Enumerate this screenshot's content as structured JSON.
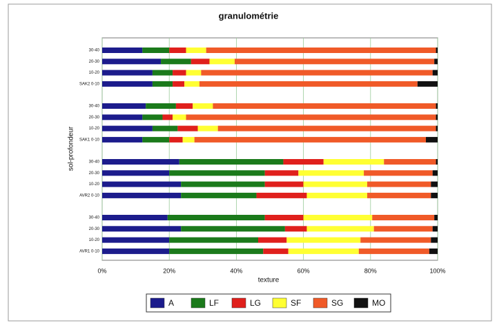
{
  "chart_data": {
    "type": "stacked-bar-horizontal",
    "title": "granulométrie",
    "x_label": "texture",
    "y_label": "sol-profondeur",
    "categories": [
      "30-40",
      "20-30",
      "10-20",
      "SAK2 0-10",
      "30-40",
      "20-30",
      "10-20",
      "SAK1 0-10",
      "30-40",
      "20-30",
      "10-20",
      "AVR2 0-10",
      "30-40",
      "20-30",
      "10-20",
      "AVR1 0-10"
    ],
    "series": [
      {
        "name": "A",
        "color": "#1c1c8c",
        "values": [
          12,
          17.5,
          15,
          15,
          13,
          12,
          15,
          12,
          23,
          20,
          23.5,
          23.5,
          19.5,
          23.5,
          20,
          20
        ]
      },
      {
        "name": "LF",
        "color": "#1b7a1b",
        "values": [
          8,
          9,
          6,
          6,
          9,
          6,
          7.5,
          8,
          31,
          28.5,
          25,
          22.5,
          29,
          31,
          26.5,
          28
        ]
      },
      {
        "name": "LG",
        "color": "#e0201c",
        "values": [
          5,
          5.5,
          4,
          3.5,
          5,
          3,
          6,
          4,
          12,
          10,
          11.5,
          15,
          11.5,
          6.5,
          8.5,
          7.5
        ]
      },
      {
        "name": "SF",
        "color": "#ffff33",
        "values": [
          6,
          7.5,
          4.5,
          4.5,
          6,
          4,
          6,
          3.5,
          18,
          19.5,
          19,
          18,
          20.5,
          20,
          22,
          21
        ]
      },
      {
        "name": "SG",
        "color": "#f05a28",
        "values": [
          68.5,
          59.5,
          69,
          65,
          66.5,
          74.5,
          65,
          69,
          15.5,
          20.5,
          19,
          19,
          18.5,
          17.5,
          21,
          21
        ]
      },
      {
        "name": "MO",
        "color": "#111111",
        "values": [
          0.5,
          1,
          1.5,
          6,
          0.5,
          0.5,
          0.5,
          3.5,
          0.5,
          1.5,
          2,
          2,
          1,
          1.5,
          2,
          2.5
        ]
      }
    ],
    "xlim": [
      0,
      100
    ],
    "xticks": [
      {
        "value": 0,
        "label": "0%"
      },
      {
        "value": 20,
        "label": "20%"
      },
      {
        "value": 40,
        "label": "40%"
      },
      {
        "value": 60,
        "label": "60%"
      },
      {
        "value": 80,
        "label": "80%"
      },
      {
        "value": 100,
        "label": "100%"
      }
    ],
    "grid": true,
    "legend": "bottom"
  }
}
